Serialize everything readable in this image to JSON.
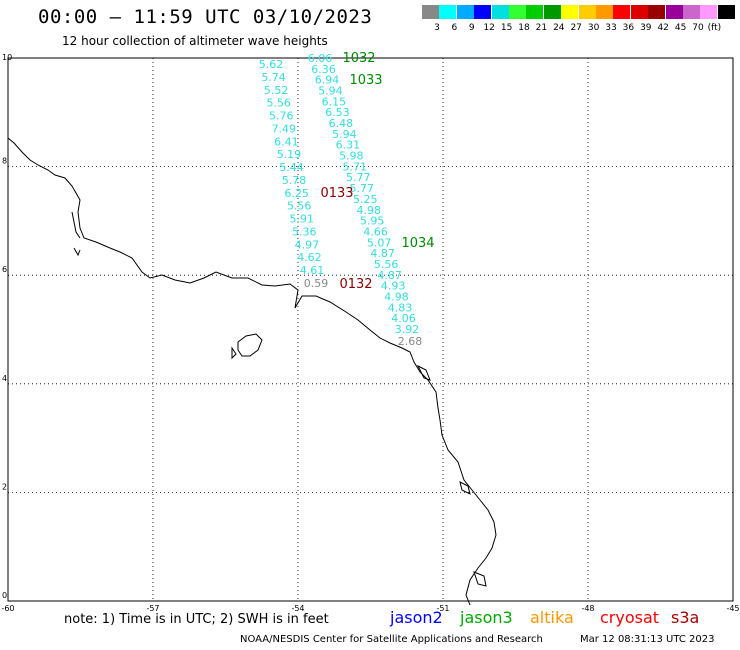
{
  "title": "00:00 – 11:59 UTC 03/10/2023",
  "subtitle": "12 hour collection of altimeter wave heights",
  "colorbar": {
    "unit": "(ft)",
    "swatches": [
      "#888888",
      "#00ffff",
      "#00aaff",
      "#0000ff",
      "#00e0e0",
      "#33ff33",
      "#00cc00",
      "#009900",
      "#ffff00",
      "#ffcc00",
      "#ff9900",
      "#ff0000",
      "#dd0000",
      "#990000",
      "#990099",
      "#cc66cc",
      "#ff99ff",
      "#000000"
    ],
    "ticks": [
      "3",
      "6",
      "9",
      "12",
      "15",
      "18",
      "21",
      "24",
      "27",
      "30",
      "33",
      "36",
      "39",
      "42",
      "45",
      "70"
    ]
  },
  "axes": {
    "lat_labels": [
      "10",
      "8",
      "6",
      "4",
      "2",
      "0"
    ],
    "lon_labels": [
      "-60",
      "-57",
      "-54",
      "-51",
      "-48",
      "-45"
    ],
    "lat_range": [
      0,
      10
    ],
    "lon_range": [
      -60,
      -45
    ]
  },
  "chart_data": {
    "type": "scatter",
    "unit": "ft",
    "passes": [
      {
        "color": "#33dddd",
        "labels": [
          "5.62",
          "5.74",
          "5.52",
          "5.56",
          "5.76",
          "7.49",
          "6.41",
          "5.19",
          "5.44",
          "5.78",
          "6.25",
          "5.56",
          "5.91",
          "5.36",
          "4.97",
          "4.62",
          "4.61"
        ]
      },
      {
        "color": "#33dddd",
        "labels": [
          "6.06",
          "6.36",
          "6.94",
          "5.94",
          "6.15",
          "6.53",
          "6.48",
          "5.94",
          "6.31",
          "5.98",
          "5.71",
          "5.77",
          "5.77",
          "5.25",
          "4.98",
          "5.95",
          "4.66",
          "5.07",
          "4.87",
          "5.56",
          "4.87",
          "4.93",
          "4.98",
          "4.83",
          "4.06",
          "3.92"
        ]
      }
    ],
    "gray_labels": [
      "0.59",
      "2.68"
    ],
    "pass_times": [
      {
        "label": "1032",
        "color": "#008800"
      },
      {
        "label": "1033",
        "color": "#008800"
      },
      {
        "label": "0133",
        "color": "#880000"
      },
      {
        "label": "1034",
        "color": "#008800"
      },
      {
        "label": "0132",
        "color": "#880000"
      }
    ]
  },
  "note": "note: 1) Time is in UTC; 2) SWH is in feet",
  "satellites": [
    {
      "name": "jason2",
      "color": "#0000ff"
    },
    {
      "name": "jason3",
      "color": "#00aa00"
    },
    {
      "name": "altika",
      "color": "#ff9900"
    },
    {
      "name": "cryosat",
      "color": "#ff0000"
    },
    {
      "name": "s3a",
      "color": "#aa0000"
    }
  ],
  "footer": {
    "left": "NOAA/NESDIS Center for Satellite Applications and Research",
    "right": "Mar 12 08:31:13 UTC 2023"
  }
}
